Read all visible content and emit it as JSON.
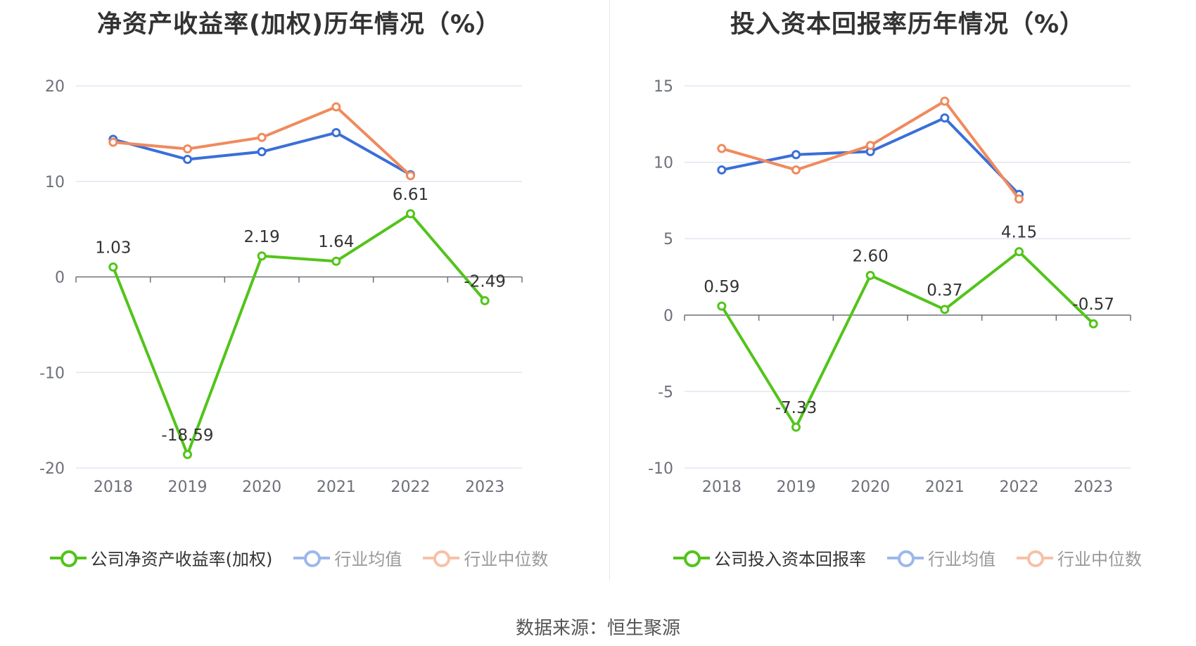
{
  "source_label": "数据来源：恒生聚源",
  "colors": {
    "company": "#52c41a",
    "avg": "#3a6fd8",
    "median": "#f08a5d",
    "grid": "#e0e6f1",
    "axis": "#6e7079"
  },
  "chart_data": [
    {
      "type": "line",
      "title": "净资产收益率(加权)历年情况（%）",
      "categories": [
        "2018",
        "2019",
        "2020",
        "2021",
        "2022",
        "2023"
      ],
      "ylim": [
        -20,
        20
      ],
      "yticks": [
        20,
        10,
        0,
        -10,
        -20
      ],
      "grid": true,
      "legend_placement": "bottom",
      "series": [
        {
          "name": "公司净资产收益率(加权)",
          "key": "company",
          "values": [
            1.03,
            -18.59,
            2.19,
            1.64,
            6.61,
            -2.49
          ],
          "labels": [
            "1.03",
            "-18.59",
            "2.19",
            "1.64",
            "6.61",
            "-2.49"
          ]
        },
        {
          "name": "行业均值",
          "key": "avg",
          "values": [
            14.4,
            12.3,
            13.1,
            15.1,
            10.7,
            null
          ]
        },
        {
          "name": "行业中位数",
          "key": "median",
          "values": [
            14.1,
            13.4,
            14.6,
            17.8,
            10.6,
            null
          ]
        }
      ]
    },
    {
      "type": "line",
      "title": "投入资本回报率历年情况（%）",
      "categories": [
        "2018",
        "2019",
        "2020",
        "2021",
        "2022",
        "2023"
      ],
      "ylim": [
        -10,
        15
      ],
      "yticks": [
        15,
        10,
        5,
        0,
        -5,
        -10
      ],
      "grid": true,
      "legend_placement": "bottom",
      "series": [
        {
          "name": "公司投入资本回报率",
          "key": "company",
          "values": [
            0.59,
            -7.33,
            2.6,
            0.37,
            4.15,
            -0.57
          ],
          "labels": [
            "0.59",
            "-7.33",
            "2.60",
            "0.37",
            "4.15",
            "-0.57"
          ]
        },
        {
          "name": "行业均值",
          "key": "avg",
          "values": [
            9.5,
            10.5,
            10.7,
            12.9,
            7.9,
            null
          ]
        },
        {
          "name": "行业中位数",
          "key": "median",
          "values": [
            10.9,
            9.5,
            11.1,
            14.0,
            7.6,
            null
          ]
        }
      ]
    }
  ]
}
